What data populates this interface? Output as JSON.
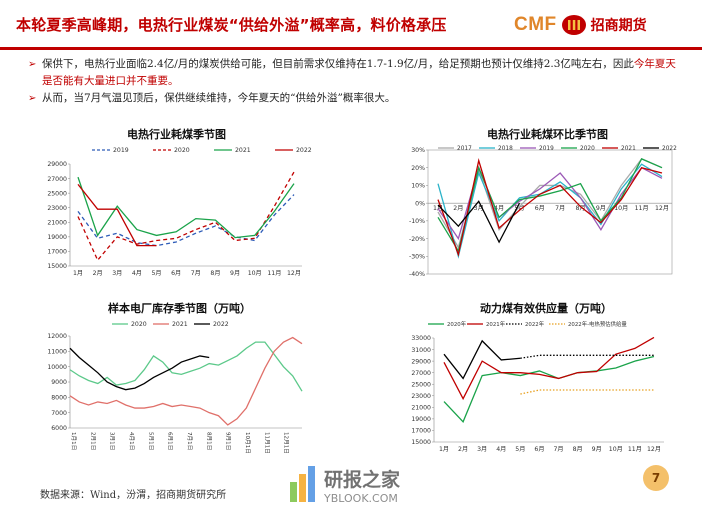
{
  "header": {
    "title": "本轮夏季高峰期，电热行业煤炭“供给外溢”概率高，料价格承压",
    "logo_en": "CMF",
    "logo_cn": "招商期货"
  },
  "bullets": [
    {
      "text": "保供下，电热行业面临2.4亿/月的煤炭供给可能，但目前需求仅维持在1.7-1.9亿/月，给足预期也预计仅维持2.3亿吨左右，因此",
      "highlight": "今年夏天是否能有大量进口并不重要。"
    },
    {
      "text": "从而，当7月气温见顶后，保供继续维持，今年夏天的“供给外溢”概率很大。",
      "highlight": ""
    }
  ],
  "footer": {
    "source": "数据来源：Wind，汾渭，招商期货研究所"
  },
  "page_number": "7",
  "watermark": {
    "cn": "研报之家",
    "en": "YBLOOK.COM"
  },
  "colors": {
    "red": "#c00000",
    "green": "#1aa34a",
    "black": "#000000",
    "purple": "#9b59b6",
    "teal": "#2bb3c9",
    "gray": "#aaaaaa",
    "blue": "#2e5cb8",
    "orange": "#e8a020"
  },
  "chart_data": [
    {
      "id": "c1",
      "type": "line",
      "title": "电热行业耗煤季节图",
      "categories": [
        "1月",
        "2月",
        "3月",
        "4月",
        "5月",
        "6月",
        "7月",
        "8月",
        "9月",
        "10月",
        "11月",
        "12月"
      ],
      "ylim": [
        15000,
        29000
      ],
      "yticks": [
        15000,
        17000,
        19000,
        21000,
        23000,
        25000,
        27000,
        29000
      ],
      "series": [
        {
          "name": "2019",
          "color": "#2e5cb8",
          "dash": true,
          "values": [
            22500,
            18800,
            19500,
            18200,
            17800,
            18300,
            19500,
            20500,
            19000,
            18500,
            22000,
            24800
          ]
        },
        {
          "name": "2020",
          "color": "#c00000",
          "dash": true,
          "values": [
            21800,
            15800,
            19000,
            18000,
            18500,
            18800,
            20000,
            21000,
            18500,
            18800,
            23200,
            27900
          ]
        },
        {
          "name": "2021",
          "color": "#1aa34a",
          "dash": false,
          "values": [
            27200,
            19200,
            23200,
            20000,
            19200,
            19700,
            21500,
            21300,
            18900,
            19200,
            22500,
            26300
          ]
        },
        {
          "name": "2022",
          "color": "#c00000",
          "dash": false,
          "values": [
            26200,
            22800,
            22800,
            17800,
            17800,
            null,
            null,
            null,
            null,
            null,
            null,
            null
          ]
        }
      ]
    },
    {
      "id": "c2",
      "type": "line",
      "title": "电热行业耗煤环比季节图",
      "categories": [
        "1月",
        "2月",
        "3月",
        "4月",
        "5月",
        "6月",
        "7月",
        "8月",
        "9月",
        "10月",
        "11月",
        "12月"
      ],
      "ylim": [
        -40,
        30
      ],
      "yticks": [
        -40,
        -30,
        -20,
        -10,
        0,
        10,
        20,
        30
      ],
      "series": [
        {
          "name": "2017",
          "color": "#aaaaaa",
          "values": [
            -5,
            -25,
            19,
            -15,
            -2,
            10,
            10,
            5,
            -10,
            10,
            25,
            20
          ]
        },
        {
          "name": "2018",
          "color": "#2bb3c9",
          "values": [
            11,
            -30,
            17,
            -10,
            3,
            5,
            12,
            3,
            -12,
            8,
            22,
            15
          ]
        },
        {
          "name": "2019",
          "color": "#9b59b6",
          "values": [
            -3,
            -20,
            20,
            -8,
            1,
            8,
            17,
            3,
            -15,
            5,
            20,
            14
          ]
        },
        {
          "name": "2020",
          "color": "#1aa34a",
          "values": [
            -8,
            -27,
            20,
            -8,
            2,
            4,
            7,
            11,
            -10,
            3,
            25,
            20
          ]
        },
        {
          "name": "2021",
          "color": "#c00000",
          "values": [
            2,
            -29,
            24,
            -14,
            -4,
            5,
            10,
            -2,
            -11,
            2,
            20,
            17
          ]
        },
        {
          "name": "2022",
          "color": "#000000",
          "values": [
            -1,
            -13,
            1,
            -22,
            0,
            null,
            null,
            null,
            null,
            null,
            null,
            null
          ]
        }
      ]
    },
    {
      "id": "c3",
      "type": "line",
      "title": "样本电厂库存季节图（万吨）",
      "ylim": [
        6000,
        12000
      ],
      "yticks": [
        6000,
        7000,
        8000,
        9000,
        10000,
        11000,
        12000
      ],
      "xticks": [
        "1月1日",
        "2月1日",
        "3月1日",
        "4月1日",
        "5月1日",
        "6月1日",
        "7月1日",
        "8月1日",
        "9月1日",
        "10月1日",
        "11月1日",
        "12月1日"
      ],
      "series": [
        {
          "name": "2020",
          "color": "#5cc98a",
          "values": [
            9800,
            9400,
            9100,
            8900,
            9300,
            8800,
            8900,
            9100,
            9800,
            10700,
            10300,
            9600,
            9500,
            9700,
            9900,
            10200,
            10100,
            10400,
            10700,
            11200,
            11600,
            11600,
            10800,
            10000,
            9400,
            8400
          ]
        },
        {
          "name": "2021",
          "color": "#e0706a",
          "values": [
            8100,
            7700,
            7500,
            7700,
            7600,
            7800,
            7500,
            7300,
            7300,
            7400,
            7600,
            7400,
            7500,
            7400,
            7300,
            7000,
            6800,
            6200,
            6600,
            7300,
            8600,
            9900,
            11000,
            11600,
            11900,
            11500
          ]
        },
        {
          "name": "2022",
          "color": "#000000",
          "values": [
            11200,
            10600,
            10100,
            9600,
            9000,
            8700,
            8500,
            8600,
            8900,
            9300,
            9600,
            9900,
            10300,
            10500,
            10700,
            10600,
            null,
            null,
            null,
            null,
            null,
            null,
            null,
            null,
            null,
            null
          ]
        }
      ]
    },
    {
      "id": "c4",
      "type": "line",
      "title": "动力煤有效供应量（万吨）",
      "categories": [
        "1月",
        "2月",
        "3月",
        "4月",
        "5月",
        "6月",
        "7月",
        "8月",
        "9月",
        "10月",
        "11月",
        "12月"
      ],
      "ylim": [
        15000,
        33000
      ],
      "yticks": [
        15000,
        17000,
        19000,
        21000,
        23000,
        25000,
        27000,
        29000,
        31000,
        33000
      ],
      "series": [
        {
          "name": "2020年",
          "color": "#1aa34a",
          "style": "solid",
          "values": [
            22000,
            18500,
            26500,
            27000,
            26500,
            27300,
            26000,
            27000,
            27300,
            27800,
            29000,
            29800
          ]
        },
        {
          "name": "2021年",
          "color": "#c00000",
          "style": "solid",
          "values": [
            28800,
            22500,
            29000,
            27000,
            27000,
            26700,
            26000,
            27000,
            27200,
            30200,
            31200,
            33100
          ]
        },
        {
          "name": "2022年",
          "color": "#000000",
          "style": "solid_then_dot",
          "solid_until": 4,
          "values": [
            30200,
            26000,
            32500,
            29200,
            29500,
            30000,
            30000,
            30000,
            30000,
            30000,
            30000,
            30000
          ]
        },
        {
          "name": "2022年-电热预估供给量",
          "color": "#e8a020",
          "style": "dot",
          "values": [
            null,
            null,
            null,
            null,
            23300,
            24000,
            24000,
            24000,
            24000,
            24000,
            24000,
            24000
          ]
        }
      ]
    }
  ]
}
